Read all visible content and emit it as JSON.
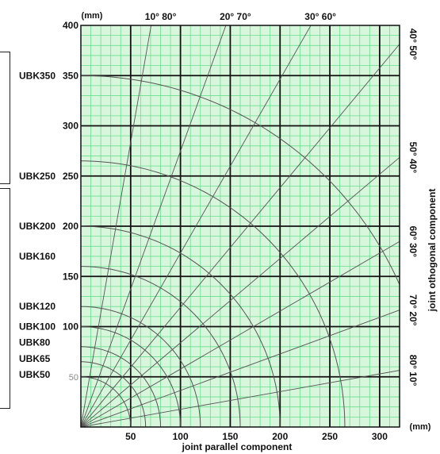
{
  "chart_data": {
    "type": "line",
    "title": "",
    "xlabel": "joint parallel component",
    "ylabel": "joint othogonal component",
    "x_unit": "(mm)",
    "y_unit": "(mm)",
    "xlim": [
      0,
      320
    ],
    "ylim": [
      0,
      400
    ],
    "x_ticks": [
      "50",
      "100",
      "150",
      "200",
      "250",
      "300"
    ],
    "y_ticks": [
      {
        "value": 400,
        "label": "400",
        "style": "bold"
      },
      {
        "value": 350,
        "label": "350",
        "style": "bold"
      },
      {
        "value": 300,
        "label": "300",
        "style": "bold"
      },
      {
        "value": 250,
        "label": "250",
        "style": "bold"
      },
      {
        "value": 200,
        "label": "200",
        "style": "bold"
      },
      {
        "value": 150,
        "label": "150",
        "style": "bold"
      },
      {
        "value": 100,
        "label": "100",
        "style": "bold"
      },
      {
        "value": 50,
        "label": "50",
        "style": "faint"
      }
    ],
    "grid": {
      "minor_step": 10,
      "major_step": 50,
      "minor_color": "#66e08e",
      "major_color": "#111111",
      "background": "#d8f6dc"
    },
    "series": [
      {
        "name": "UBK350",
        "radius": 350,
        "label_y": 350
      },
      {
        "name": "UBK250",
        "radius": 265,
        "label_y": 250
      },
      {
        "name": "UBK200",
        "radius": 200,
        "label_y": 200
      },
      {
        "name": "UBK160",
        "radius": 160,
        "label_y": 170
      },
      {
        "name": "UBK120",
        "radius": 120,
        "label_y": 120
      },
      {
        "name": "UBK100",
        "radius": 100,
        "label_y": 100
      },
      {
        "name": "UBK80",
        "radius": 80,
        "label_y": 84
      },
      {
        "name": "UBK65",
        "radius": 65,
        "label_y": 68
      },
      {
        "name": "UBK50",
        "radius": 50,
        "label_y": 52
      }
    ],
    "angle_rays": [
      {
        "label": "10° 80°",
        "angle_from_vertical": 10
      },
      {
        "label": "20° 70°",
        "angle_from_vertical": 20
      },
      {
        "label": "30° 60°",
        "angle_from_vertical": 30
      },
      {
        "label": "40° 50°",
        "angle_from_vertical": 40
      },
      {
        "label": "50° 40°",
        "angle_from_vertical": 50
      },
      {
        "label": "60° 30°",
        "angle_from_vertical": 60
      },
      {
        "label": "70° 20°",
        "angle_from_vertical": 70
      },
      {
        "label": "80° 10°",
        "angle_from_vertical": 80
      }
    ],
    "colors": {
      "curve": "#555555",
      "ray": "#555555",
      "frame": "#111111"
    }
  }
}
